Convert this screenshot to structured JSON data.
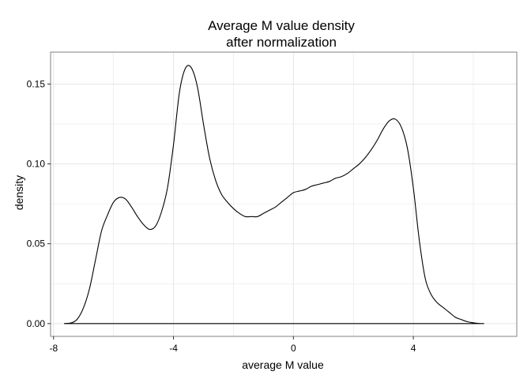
{
  "chart_data": {
    "type": "line",
    "title_lines": [
      "Average M value density",
      "after normalization"
    ],
    "xlabel": "average M value",
    "ylabel": "density",
    "xlim": [
      -8.1,
      7.45
    ],
    "ylim": [
      -0.008,
      0.17
    ],
    "x_ticks": [
      -8,
      -4,
      0,
      4
    ],
    "x_tick_labels": [
      "-8",
      "-4",
      "0",
      "4"
    ],
    "y_ticks": [
      0.0,
      0.05,
      0.1,
      0.15
    ],
    "y_tick_labels": [
      "0.00",
      "0.05",
      "0.10",
      "0.15"
    ],
    "grid": true,
    "legend": "none",
    "series": [
      {
        "line_color": "#000000",
        "x": [
          -7.65,
          -7.4,
          -7.2,
          -7.0,
          -6.8,
          -6.6,
          -6.4,
          -6.2,
          -6.0,
          -5.8,
          -5.6,
          -5.4,
          -5.2,
          -5.0,
          -4.8,
          -4.6,
          -4.4,
          -4.2,
          -4.0,
          -3.8,
          -3.6,
          -3.4,
          -3.2,
          -3.0,
          -2.8,
          -2.6,
          -2.4,
          -2.2,
          -2.0,
          -1.8,
          -1.6,
          -1.4,
          -1.2,
          -1.0,
          -0.8,
          -0.6,
          -0.4,
          -0.2,
          0.0,
          0.2,
          0.4,
          0.6,
          0.8,
          1.0,
          1.2,
          1.4,
          1.6,
          1.8,
          2.0,
          2.2,
          2.4,
          2.6,
          2.8,
          3.0,
          3.2,
          3.4,
          3.6,
          3.8,
          4.0,
          4.2,
          4.4,
          4.6,
          4.8,
          5.0,
          5.2,
          5.4,
          5.6,
          5.8,
          6.0,
          6.2,
          6.35
        ],
        "y": [
          0.0,
          0.0005,
          0.003,
          0.01,
          0.022,
          0.04,
          0.058,
          0.068,
          0.076,
          0.079,
          0.078,
          0.073,
          0.067,
          0.062,
          0.059,
          0.061,
          0.07,
          0.085,
          0.112,
          0.145,
          0.16,
          0.16,
          0.148,
          0.125,
          0.104,
          0.09,
          0.081,
          0.076,
          0.072,
          0.069,
          0.067,
          0.067,
          0.067,
          0.069,
          0.071,
          0.073,
          0.076,
          0.079,
          0.082,
          0.083,
          0.084,
          0.086,
          0.087,
          0.088,
          0.089,
          0.091,
          0.092,
          0.094,
          0.097,
          0.1,
          0.104,
          0.109,
          0.115,
          0.122,
          0.127,
          0.128,
          0.123,
          0.11,
          0.085,
          0.052,
          0.028,
          0.018,
          0.013,
          0.01,
          0.007,
          0.004,
          0.0025,
          0.0012,
          0.0005,
          0.0001,
          0.0
        ]
      }
    ],
    "colors": {
      "background": "#ffffff",
      "grid": "#e5e5e5",
      "panel_border": "#808080",
      "line": "#000000"
    }
  }
}
